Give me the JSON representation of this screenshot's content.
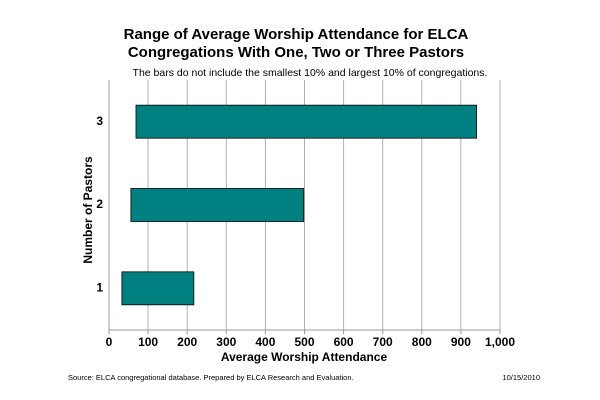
{
  "chart_data": {
    "type": "range-bar",
    "title": [
      "Range of Average Worship Attendance for ELCA",
      "Congregations With One, Two or Three Pastors"
    ],
    "subtitle": "The bars do not include the smallest 10% and largest 10% of congregations.",
    "x_label": "Average Worship Attendance",
    "y_label": "Number of Pastors",
    "categories": [
      "1",
      "2",
      "3"
    ],
    "low": [
      33,
      56,
      69
    ],
    "high": [
      217,
      498,
      940
    ],
    "color": "#008080",
    "xlim": [
      0,
      1000
    ],
    "xticks": [
      0,
      100,
      200,
      300,
      400,
      500,
      600,
      700,
      800,
      900,
      {
        "value": 1000,
        "label": "1,000"
      }
    ],
    "grid": true,
    "source": "Source: ELCA congregational database.  Prepared by ELCA Research and Evaluation.",
    "date": "10/15/2010"
  }
}
